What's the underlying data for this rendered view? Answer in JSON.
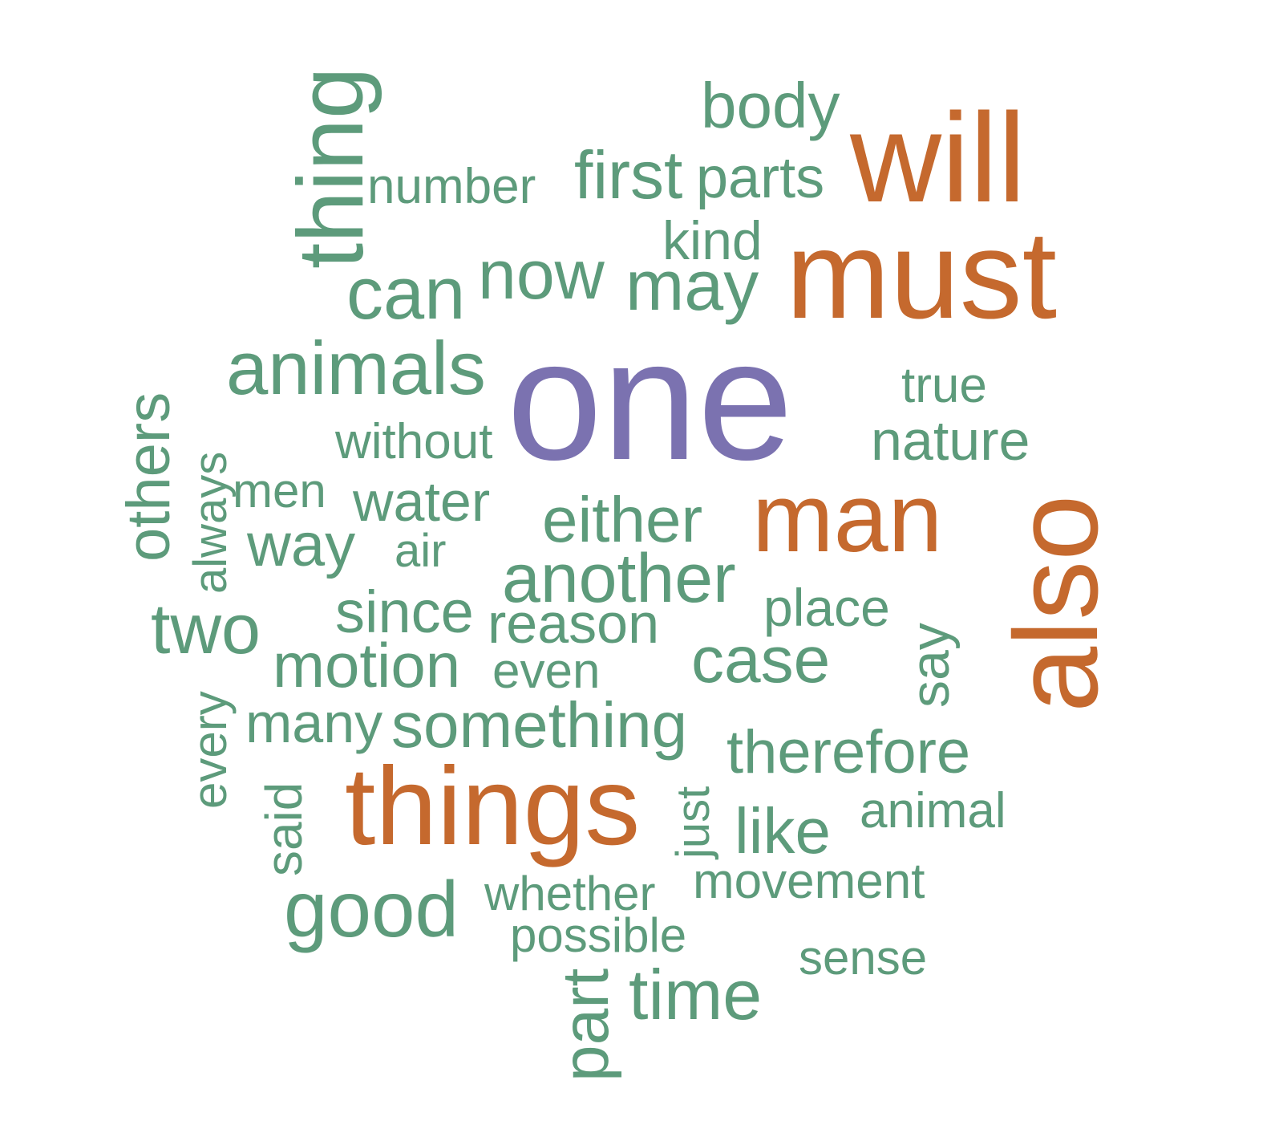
{
  "colors": {
    "primary": "#7b72b0",
    "secondary": "#c5692e",
    "tertiary": "#5d9b7b"
  },
  "words": [
    {
      "text": "one",
      "tier": "primary"
    },
    {
      "text": "will",
      "tier": "secondary"
    },
    {
      "text": "must",
      "tier": "secondary"
    },
    {
      "text": "man",
      "tier": "secondary"
    },
    {
      "text": "also",
      "tier": "secondary"
    },
    {
      "text": "things",
      "tier": "secondary"
    },
    {
      "text": "body",
      "tier": "tertiary"
    },
    {
      "text": "thing",
      "tier": "tertiary"
    },
    {
      "text": "number",
      "tier": "tertiary"
    },
    {
      "text": "first",
      "tier": "tertiary"
    },
    {
      "text": "parts",
      "tier": "tertiary"
    },
    {
      "text": "kind",
      "tier": "tertiary"
    },
    {
      "text": "can",
      "tier": "tertiary"
    },
    {
      "text": "now",
      "tier": "tertiary"
    },
    {
      "text": "may",
      "tier": "tertiary"
    },
    {
      "text": "animals",
      "tier": "tertiary"
    },
    {
      "text": "true",
      "tier": "tertiary"
    },
    {
      "text": "nature",
      "tier": "tertiary"
    },
    {
      "text": "without",
      "tier": "tertiary"
    },
    {
      "text": "others",
      "tier": "tertiary"
    },
    {
      "text": "always",
      "tier": "tertiary"
    },
    {
      "text": "men",
      "tier": "tertiary"
    },
    {
      "text": "water",
      "tier": "tertiary"
    },
    {
      "text": "either",
      "tier": "tertiary"
    },
    {
      "text": "way",
      "tier": "tertiary"
    },
    {
      "text": "air",
      "tier": "tertiary"
    },
    {
      "text": "another",
      "tier": "tertiary"
    },
    {
      "text": "place",
      "tier": "tertiary"
    },
    {
      "text": "say",
      "tier": "tertiary"
    },
    {
      "text": "two",
      "tier": "tertiary"
    },
    {
      "text": "since",
      "tier": "tertiary"
    },
    {
      "text": "reason",
      "tier": "tertiary"
    },
    {
      "text": "motion",
      "tier": "tertiary"
    },
    {
      "text": "even",
      "tier": "tertiary"
    },
    {
      "text": "case",
      "tier": "tertiary"
    },
    {
      "text": "every",
      "tier": "tertiary"
    },
    {
      "text": "many",
      "tier": "tertiary"
    },
    {
      "text": "something",
      "tier": "tertiary"
    },
    {
      "text": "therefore",
      "tier": "tertiary"
    },
    {
      "text": "just",
      "tier": "tertiary"
    },
    {
      "text": "said",
      "tier": "tertiary"
    },
    {
      "text": "like",
      "tier": "tertiary"
    },
    {
      "text": "animal",
      "tier": "tertiary"
    },
    {
      "text": "good",
      "tier": "tertiary"
    },
    {
      "text": "whether",
      "tier": "tertiary"
    },
    {
      "text": "movement",
      "tier": "tertiary"
    },
    {
      "text": "possible",
      "tier": "tertiary"
    },
    {
      "text": "sense",
      "tier": "tertiary"
    },
    {
      "text": "part",
      "tier": "tertiary"
    },
    {
      "text": "time",
      "tier": "tertiary"
    }
  ]
}
